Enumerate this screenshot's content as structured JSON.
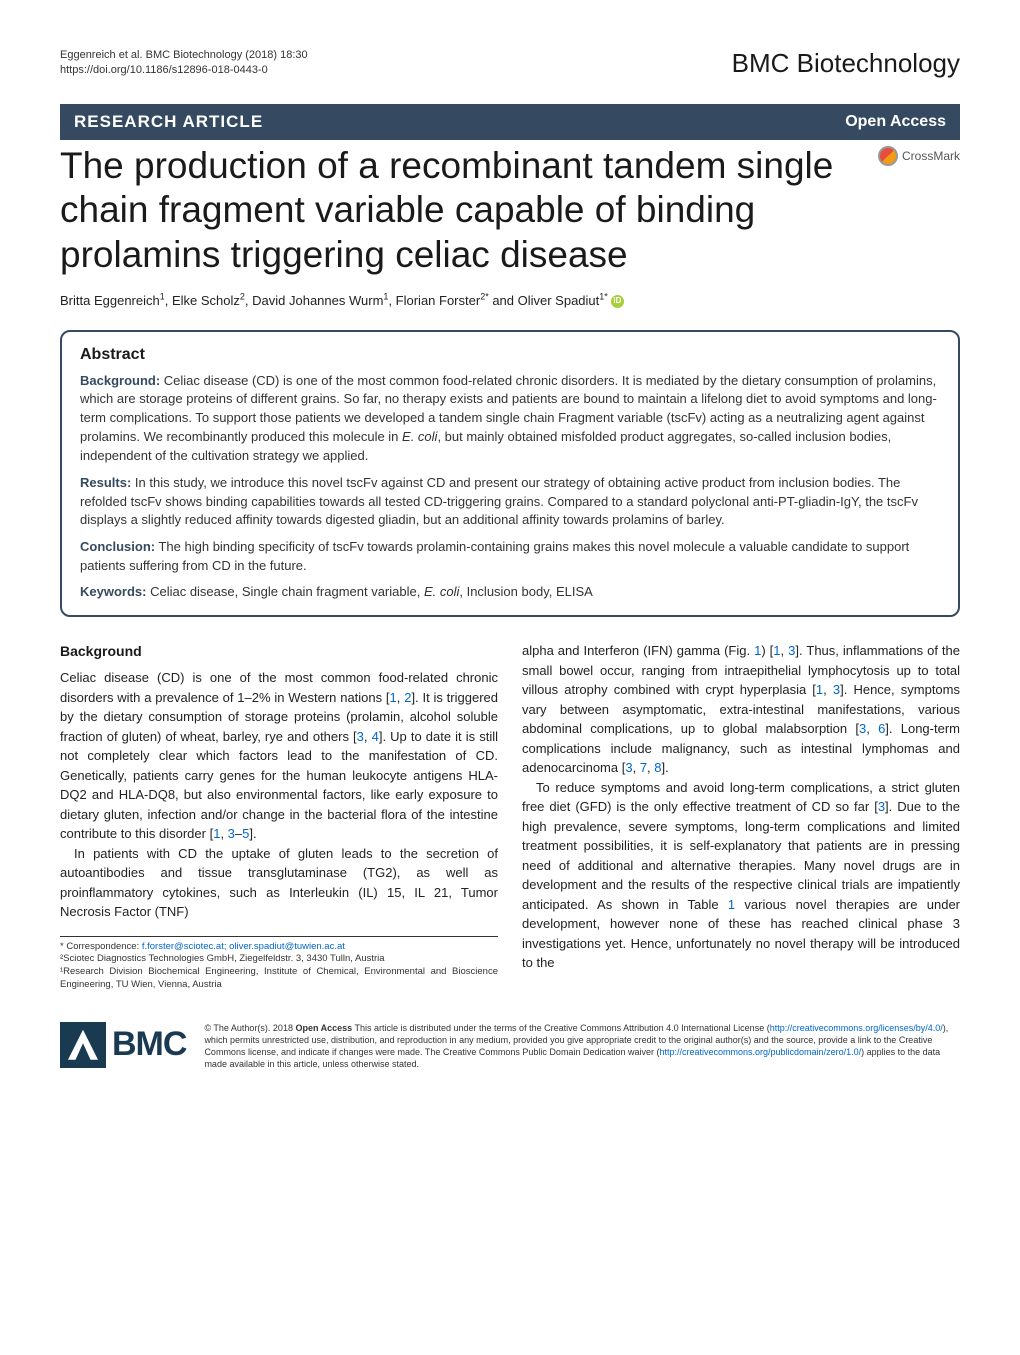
{
  "meta": {
    "citation": "Eggenreich et al. BMC Biotechnology  (2018) 18:30",
    "doi": "https://doi.org/10.1186/s12896-018-0443-0",
    "journal": "BMC Biotechnology"
  },
  "bar": {
    "type": "RESEARCH ARTICLE",
    "access": "Open Access"
  },
  "crossmark": "CrossMark",
  "title": "The production of a recombinant tandem single chain fragment variable capable of binding prolamins triggering celiac disease",
  "authors_html": "Britta Eggenreich<sup>1</sup>, Elke Scholz<sup>2</sup>, David Johannes Wurm<sup>1</sup>, Florian Forster<sup>2*</sup> and Oliver Spadiut<sup>1*</sup>",
  "abstract": {
    "heading": "Abstract",
    "background_label": "Background:",
    "background": " Celiac disease (CD) is one of the most common food-related chronic disorders. It is mediated by the dietary consumption of prolamins, which are storage proteins of different grains. So far, no therapy exists and patients are bound to maintain a lifelong diet to avoid symptoms and long-term complications. To support those patients we developed a tandem single chain Fragment variable (tscFv) acting as a neutralizing agent against prolamins. We recombinantly produced this molecule in <em>E. coli</em>, but mainly obtained misfolded product aggregates, so-called inclusion bodies, independent of the cultivation strategy we applied.",
    "results_label": "Results:",
    "results": " In this study, we introduce this novel tscFv against CD and present our strategy of obtaining active product from inclusion bodies. The refolded tscFv shows binding capabilities towards all tested CD-triggering grains. Compared to a standard polyclonal anti-PT-gliadin-IgY, the tscFv displays a slightly reduced affinity towards digested gliadin, but an additional affinity towards prolamins of barley.",
    "conclusion_label": "Conclusion:",
    "conclusion": " The high binding specificity of tscFv towards prolamin-containing grains makes this novel molecule a valuable candidate to support patients suffering from CD in the future.",
    "keywords_label": "Keywords:",
    "keywords": " Celiac disease, Single chain fragment variable, <em>E. coli</em>, Inclusion body, ELISA"
  },
  "body": {
    "heading": "Background",
    "p1": "Celiac disease (CD) is one of the most common food-related chronic disorders with a prevalence of 1–2% in Western nations [<span class=\"ref-link\">1</span>, <span class=\"ref-link\">2</span>]. It is triggered by the dietary consumption of storage proteins (prolamin, alcohol soluble fraction of gluten) of wheat, barley, rye and others [<span class=\"ref-link\">3</span>, <span class=\"ref-link\">4</span>]. Up to date it is still not completely clear which factors lead to the manifestation of CD. Genetically, patients carry genes for the human leukocyte antigens HLA-DQ2 and HLA-DQ8, but also environmental factors, like early exposure to dietary gluten, infection and/or change in the bacterial flora of the intestine contribute to this disorder [<span class=\"ref-link\">1</span>, <span class=\"ref-link\">3</span>–<span class=\"ref-link\">5</span>].",
    "p2": "In patients with CD the uptake of gluten leads to the secretion of autoantibodies and tissue transglutaminase (TG2), as well as proinflammatory cytokines, such as Interleukin (IL) 15, IL 21, Tumor Necrosis Factor (TNF)",
    "p3": "alpha and Interferon (IFN) gamma (Fig. <span class=\"ref-link\">1</span>) [<span class=\"ref-link\">1</span>, <span class=\"ref-link\">3</span>]. Thus, inflammations of the small bowel occur, ranging from intraepithelial lymphocytosis up to total villous atrophy combined with crypt hyperplasia [<span class=\"ref-link\">1</span>, <span class=\"ref-link\">3</span>]. Hence, symptoms vary between asymptomatic, extra-intestinal manifestations, various abdominal complications, up to global malabsorption [<span class=\"ref-link\">3</span>, <span class=\"ref-link\">6</span>]. Long-term complications include malignancy, such as intestinal lymphomas and adenocarcinoma [<span class=\"ref-link\">3</span>, <span class=\"ref-link\">7</span>, <span class=\"ref-link\">8</span>].",
    "p4": "To reduce symptoms and avoid long-term complications, a strict gluten free diet (GFD) is the only effective treatment of CD so far [<span class=\"ref-link\">3</span>]. Due to the high prevalence, severe symptoms, long-term complications and limited treatment possibilities, it is self-explanatory that patients are in pressing need of additional and alternative therapies. Many novel drugs are in development and the results of the respective clinical trials are impatiently anticipated. As shown in Table <span class=\"ref-link\">1</span> various novel therapies are under development, however none of these has reached clinical phase 3 investigations yet. Hence, unfortunately no novel therapy will be introduced to the"
  },
  "correspondence": {
    "label": "* Correspondence: ",
    "emails": "f.forster@sciotec.at; oliver.spadiut@tuwien.ac.at",
    "aff2": "²Sciotec Diagnostics Technologies GmbH, Ziegelfeldstr. 3, 3430 Tulln, Austria",
    "aff1": "¹Research Division Biochemical Engineering, Institute of Chemical, Environmental and Bioscience Engineering, TU Wien, Vienna, Austria"
  },
  "license": {
    "bmc": "BMC",
    "text": "© The Author(s). 2018 <b>Open Access</b> This article is distributed under the terms of the Creative Commons Attribution 4.0 International License (<a href=\"#\">http://creativecommons.org/licenses/by/4.0/</a>), which permits unrestricted use, distribution, and reproduction in any medium, provided you give appropriate credit to the original author(s) and the source, provide a link to the Creative Commons license, and indicate if changes were made. The Creative Commons Public Domain Dedication waiver (<a href=\"#\">http://creativecommons.org/publicdomain/zero/1.0/</a>) applies to the data made available in this article, unless otherwise stated."
  },
  "colors": {
    "bar_bg": "#354a60",
    "link": "#0066cc",
    "orcid": "#a6ce39",
    "bmc": "#1a3a52"
  }
}
